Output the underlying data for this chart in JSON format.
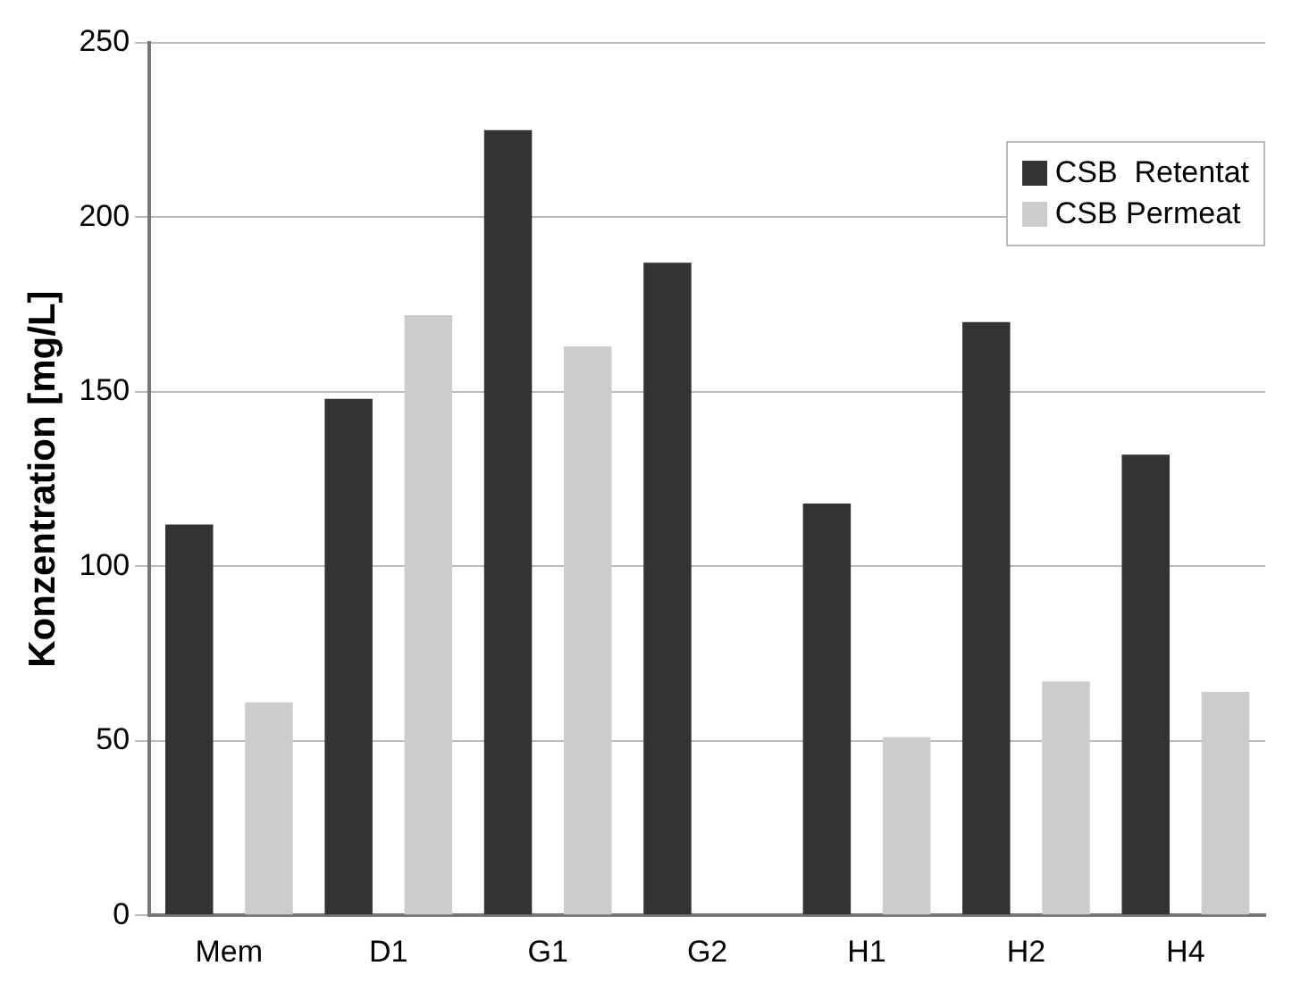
{
  "chart_data": {
    "type": "bar",
    "ylabel": "Konzentration [mg/L]",
    "categories": [
      "Mem",
      "D1",
      "G1",
      "G2",
      "H1",
      "H2",
      "H4"
    ],
    "series": [
      {
        "name": "CSB  Retentat",
        "color": "#333333",
        "values": [
          112,
          148,
          225,
          187,
          118,
          170,
          132
        ]
      },
      {
        "name": "CSB Permeat",
        "color": "#cccccc",
        "values": [
          61,
          172,
          163,
          null,
          51,
          67,
          64
        ]
      }
    ],
    "ylim": [
      0,
      250
    ],
    "yticks": [
      0,
      50,
      100,
      150,
      200,
      250
    ],
    "grid": "y",
    "legend": "top right"
  }
}
